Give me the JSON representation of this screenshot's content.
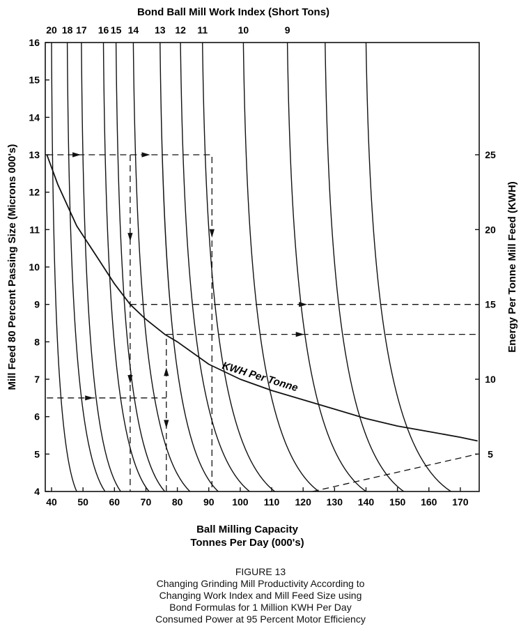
{
  "chart_data": {
    "type": "line",
    "top_axis_title": "Bond Ball Mill Work Index (Short Tons)",
    "top_tick_labels": [
      "20",
      "18",
      "17",
      "16",
      "15",
      "14",
      "13",
      "12",
      "11",
      "10",
      "9"
    ],
    "xlabel_lines": [
      "Ball Milling Capacity",
      "Tonnes Per Day (000's)"
    ],
    "ylabel": "Mill Feed 80 Percent Passing Size (Microns 000's)",
    "y2label": "Energy Per Tonne Mill Feed (KWH)",
    "xlim": [
      38,
      176
    ],
    "ylim": [
      4,
      16
    ],
    "x_ticks": [
      40,
      50,
      60,
      70,
      80,
      90,
      100,
      110,
      120,
      130,
      140,
      150,
      160,
      170
    ],
    "y_ticks": [
      4,
      5,
      6,
      7,
      8,
      9,
      10,
      11,
      12,
      13,
      14,
      15,
      16
    ],
    "y2_ticks": [
      {
        "label": "25",
        "y": 13.0
      },
      {
        "label": "20",
        "y": 11.0
      },
      {
        "label": "15",
        "y": 9.0
      },
      {
        "label": "10",
        "y": 7.0
      },
      {
        "label": "5",
        "y": 5.0
      }
    ],
    "work_index_curves": [
      {
        "work_index": "20",
        "x_top": 40,
        "x_bottom": 48
      },
      {
        "work_index": "18",
        "x_top": 45,
        "x_bottom": 57
      },
      {
        "work_index": "17",
        "x_top": 49.5,
        "x_bottom": 62
      },
      {
        "work_index": "16",
        "x_top": 56.5,
        "x_bottom": 71
      },
      {
        "work_index": "15",
        "x_top": 60.5,
        "x_bottom": 76
      },
      {
        "work_index": "14",
        "x_top": 66,
        "x_bottom": 84
      },
      {
        "work_index": "13",
        "x_top": 74.5,
        "x_bottom": 93
      },
      {
        "work_index": "12",
        "x_top": 81,
        "x_bottom": 103
      },
      {
        "work_index": "11",
        "x_top": 88,
        "x_bottom": 111
      },
      {
        "work_index": "10",
        "x_top": 101,
        "x_bottom": 125
      },
      {
        "work_index": "9",
        "x_top": 115,
        "x_bottom": 140
      },
      {
        "work_index": "",
        "x_top": 127,
        "x_bottom": 152
      },
      {
        "work_index": "",
        "x_top": 140,
        "x_bottom": 167
      }
    ],
    "kwh_curve_label": "KWH Per Tonne",
    "kwh_curve": {
      "x": [
        38.5,
        42,
        48,
        55,
        60,
        65,
        70,
        76,
        80,
        90,
        100,
        110,
        120,
        130,
        140,
        150,
        160,
        170,
        175.5
      ],
      "y": [
        13.0,
        12.2,
        11.1,
        10.2,
        9.55,
        9.0,
        8.6,
        8.2,
        8.0,
        7.4,
        7.0,
        6.7,
        6.45,
        6.2,
        5.95,
        5.75,
        5.6,
        5.45,
        5.35
      ]
    },
    "dashed_guides": [
      {
        "x": [
          38.5,
          91,
          91,
          91
        ],
        "y": [
          13,
          13,
          7.35,
          4
        ],
        "arrows": [
          {
            "x": 48,
            "y": 13,
            "dir": "right"
          },
          {
            "x": 70,
            "y": 13,
            "dir": "right"
          },
          {
            "x": 91,
            "y": 10.9,
            "dir": "down"
          }
        ]
      },
      {
        "x": [
          65,
          65
        ],
        "y": [
          13,
          4
        ],
        "arrows": [
          {
            "x": 65,
            "y": 10.8,
            "dir": "down"
          },
          {
            "x": 65,
            "y": 7.0,
            "dir": "down"
          }
        ]
      },
      {
        "x": [
          65,
          176
        ],
        "y": [
          9.0,
          9.0
        ],
        "arrows": [
          {
            "x": 120,
            "y": 9.0,
            "dir": "right"
          }
        ]
      },
      {
        "x": [
          38.5,
          76.5
        ],
        "y": [
          6.5,
          6.5
        ],
        "arrows": [
          {
            "x": 52,
            "y": 6.5,
            "dir": "right"
          }
        ]
      },
      {
        "x": [
          76.5,
          76.5
        ],
        "y": [
          4,
          8.2
        ],
        "arrows": [
          {
            "x": 76.5,
            "y": 5.8,
            "dir": "down"
          },
          {
            "x": 76.5,
            "y": 7.2,
            "dir": "up"
          }
        ]
      },
      {
        "x": [
          76.5,
          176
        ],
        "y": [
          8.2,
          8.2
        ],
        "arrows": [
          {
            "x": 119,
            "y": 8.2,
            "dir": "right"
          }
        ]
      },
      {
        "x": [
          123,
          175.5
        ],
        "y": [
          4,
          5.0
        ],
        "arrows": []
      }
    ],
    "grid": false,
    "legend": "none"
  },
  "caption": {
    "figure": "FIGURE 13",
    "lines": [
      "Changing Grinding Mill Productivity According to",
      "Changing Work Index and Mill Feed Size using",
      "Bond Formulas for 1 Million KWH Per Day",
      "Consumed Power at 95 Percent Motor Efficiency"
    ]
  }
}
